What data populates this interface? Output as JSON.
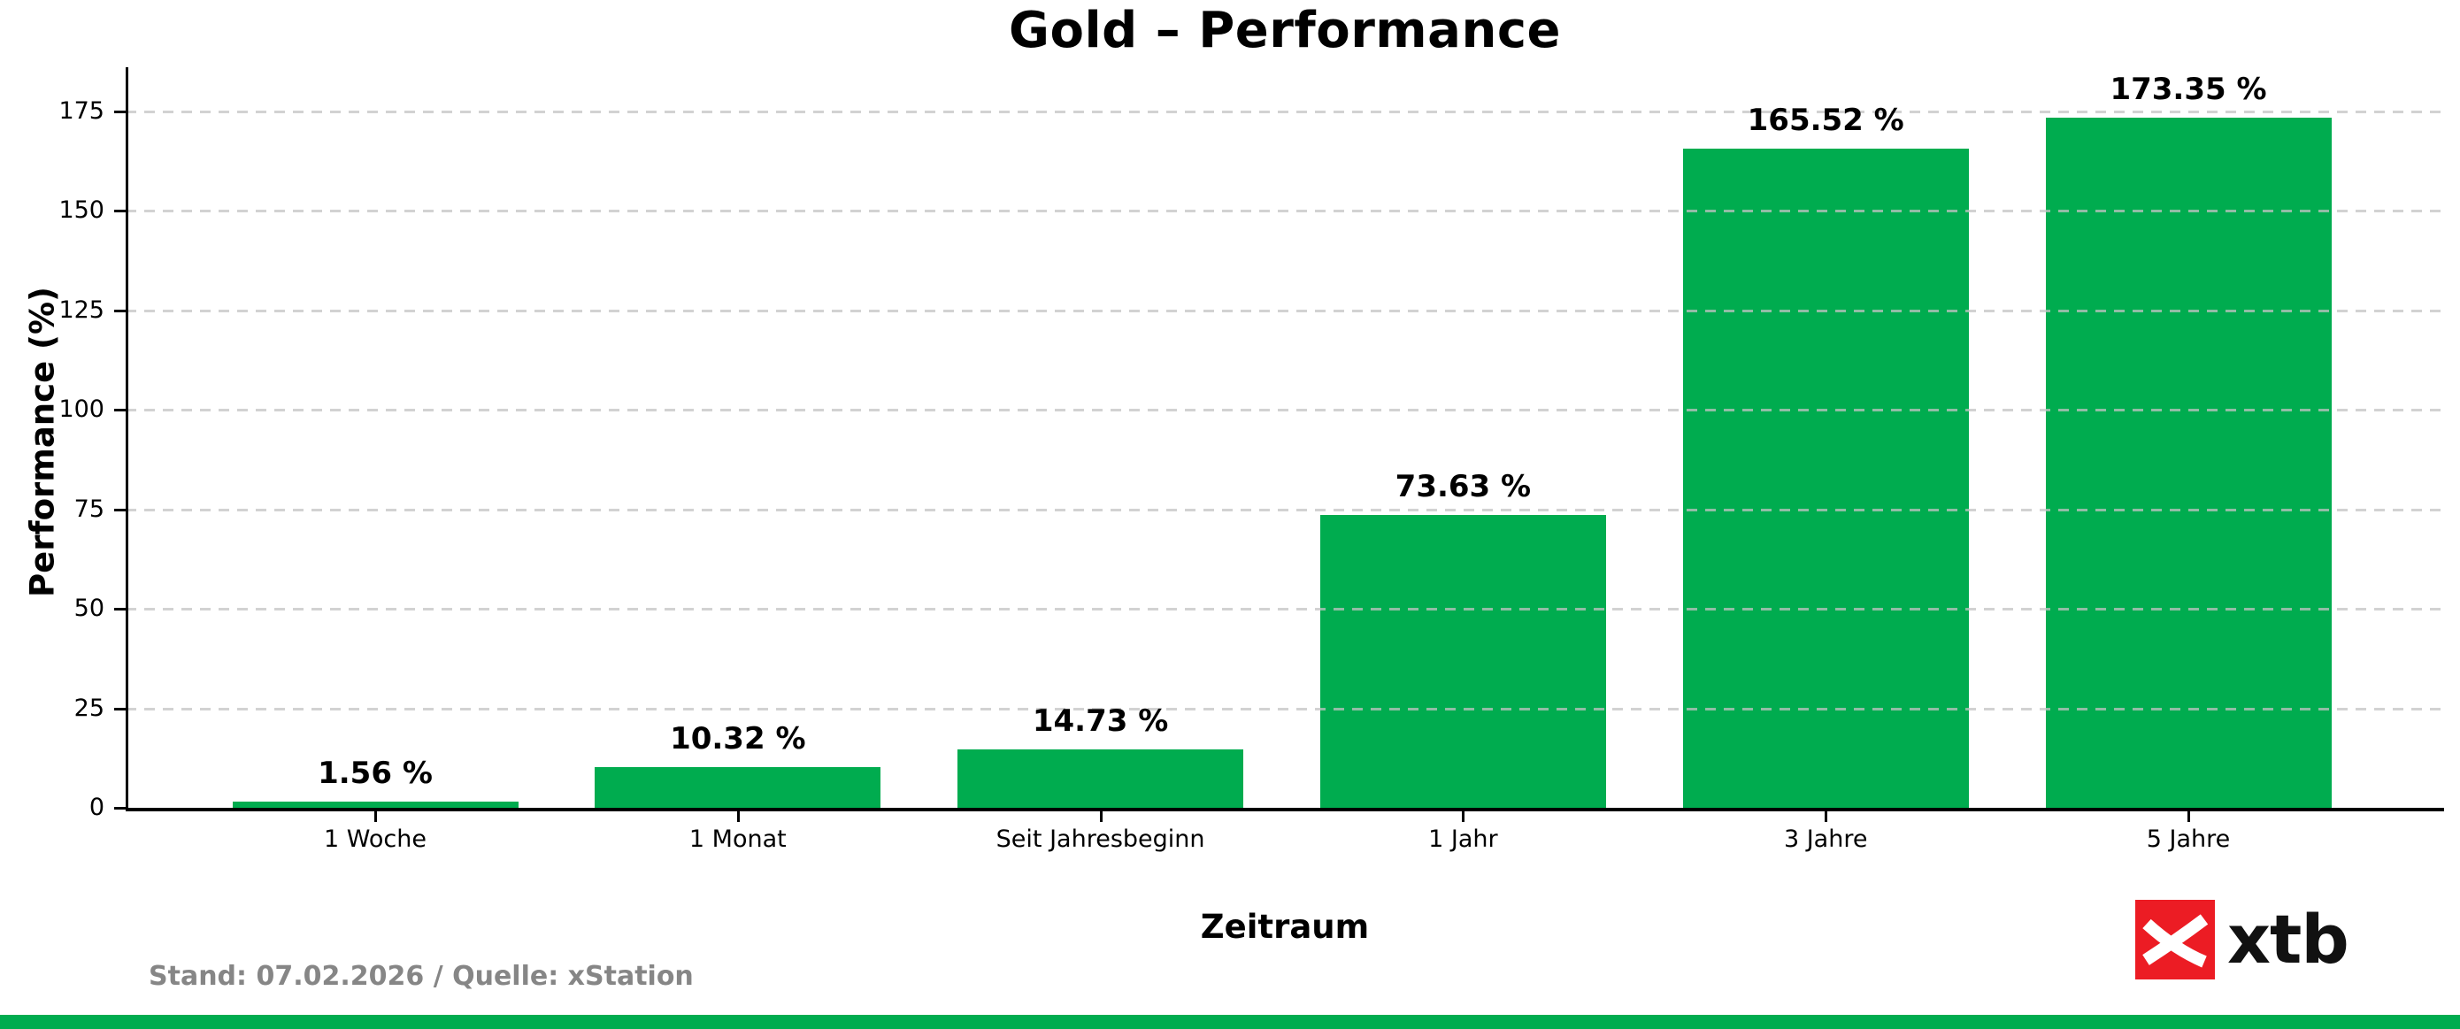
{
  "chart_data": {
    "type": "bar",
    "title": "Gold – Performance",
    "xlabel": "Zeitraum",
    "ylabel": "Performance (%)",
    "categories": [
      "1 Woche",
      "1 Monat",
      "Seit Jahresbeginn",
      "1 Jahr",
      "3 Jahre",
      "5 Jahre"
    ],
    "values": [
      1.56,
      10.32,
      14.73,
      73.63,
      165.52,
      173.35
    ],
    "value_labels": [
      "1.56 %",
      "10.32 %",
      "14.73 %",
      "73.63 %",
      "165.52 %",
      "173.35 %"
    ],
    "yticks": [
      0,
      25,
      50,
      75,
      100,
      125,
      150,
      175
    ],
    "ylim": [
      0,
      186
    ],
    "grid": "horizontal-dashed",
    "legend": "none",
    "bar_color": "#00AC4F"
  },
  "footer": {
    "source_note": "Stand: 07.02.2026 / Quelle: xStation"
  },
  "logo": {
    "text": "xtb",
    "mark": "xtb-x-icon",
    "red": "#EC1C24"
  },
  "colors": {
    "bar_green": "#00AC4F",
    "accent_strip": "#00AC4F",
    "grid_gray": "#C3C3C3",
    "footer_gray": "#868686",
    "axis_black": "#000000"
  }
}
